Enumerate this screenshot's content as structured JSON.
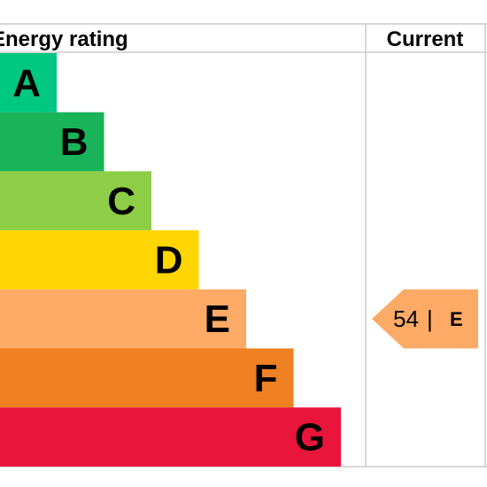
{
  "chart_data": {
    "type": "bar",
    "title": "Energy rating",
    "column_header": "Current",
    "categories": [
      "A",
      "B",
      "C",
      "D",
      "E",
      "F",
      "G"
    ],
    "band_colors": [
      "#00c781",
      "#19b459",
      "#8dce46",
      "#ffd500",
      "#fcaa65",
      "#ef8023",
      "#e9153b"
    ],
    "current": {
      "score": "54",
      "separator": "|",
      "band": "E",
      "color": "#fcaa65"
    }
  }
}
